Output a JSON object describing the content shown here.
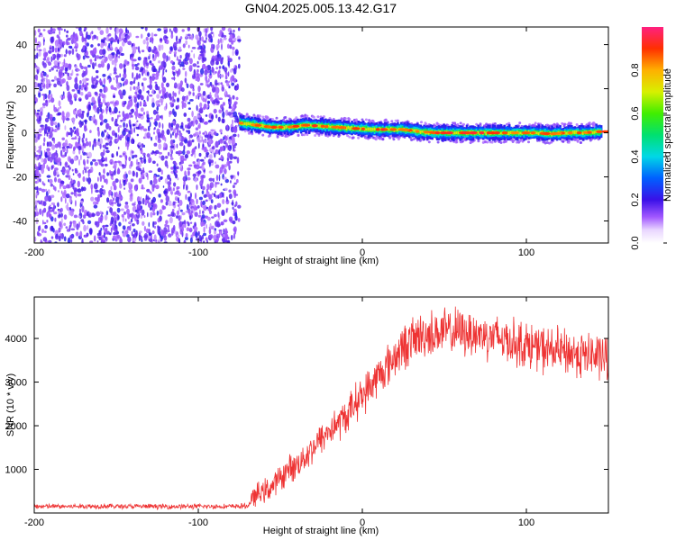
{
  "title": "GN04.2025.005.13.42.G17",
  "chart_data": [
    {
      "type": "heatmap",
      "xlabel": "Height of straight line (km)",
      "ylabel": "Frequency (Hz)",
      "xlim": [
        -200,
        150
      ],
      "ylim": [
        -50,
        48
      ],
      "xticks": [
        -200,
        -100,
        0,
        100
      ],
      "yticks": [
        -40,
        -20,
        0,
        20,
        40
      ],
      "noise_region": {
        "x": [
          -200,
          -75
        ],
        "description_values": "random scattered amplitudes 0.0–0.5"
      },
      "signal_ridge": {
        "x": [
          -75,
          -65,
          -55,
          -45,
          -35,
          -25,
          -15,
          -5,
          5,
          15,
          25,
          35,
          45,
          55,
          65,
          75,
          85,
          95,
          105,
          115,
          125,
          135,
          145
        ],
        "freq": [
          4.5,
          3.5,
          2.5,
          2.5,
          3.5,
          3.0,
          2.5,
          2.0,
          1.5,
          1.5,
          1.5,
          0.5,
          0.0,
          0.0,
          0.0,
          0.0,
          0.0,
          0.0,
          0.0,
          -0.5,
          0.0,
          0.0,
          0.5
        ],
        "amplitude": [
          0.9,
          0.9,
          0.9,
          0.9,
          0.95,
          0.9,
          0.9,
          0.9,
          0.95,
          0.9,
          0.9,
          0.9,
          0.95,
          0.95,
          0.95,
          0.95,
          0.9,
          0.9,
          0.9,
          0.9,
          0.9,
          0.9,
          0.9
        ]
      },
      "colorbar": {
        "label": "Normalized spectral amplitude",
        "range": [
          0.0,
          1.0
        ],
        "ticks": [
          "0.0",
          "0.2",
          "0.4",
          "0.6",
          "0.8"
        ],
        "ticks_values": [
          0.0,
          0.2,
          0.4,
          0.6,
          0.8
        ]
      }
    },
    {
      "type": "line",
      "xlabel": "Height of straight line (km)",
      "ylabel": "SNR (10 * v/v)",
      "xlim": [
        -200,
        150
      ],
      "ylim": [
        0,
        4950
      ],
      "xticks": [
        -200,
        -100,
        0,
        100
      ],
      "yticks": [
        1000,
        2000,
        3000,
        4000
      ],
      "color": "#ee3333",
      "series": [
        {
          "x": [
            -200,
            -180,
            -160,
            -140,
            -120,
            -100,
            -80,
            -70,
            -65,
            -60,
            -55,
            -50,
            -45,
            -40,
            -35,
            -30,
            -25,
            -20,
            -15,
            -10,
            -5,
            0,
            5,
            10,
            15,
            20,
            25,
            30,
            35,
            40,
            50,
            60,
            70,
            80,
            90,
            100,
            110,
            120,
            130,
            140,
            150
          ],
          "values": [
            150,
            150,
            160,
            150,
            150,
            150,
            150,
            160,
            400,
            500,
            600,
            800,
            1000,
            1100,
            1300,
            1500,
            1700,
            1900,
            2050,
            2200,
            2500,
            2700,
            2900,
            3150,
            3350,
            3600,
            3800,
            3950,
            4050,
            4100,
            4150,
            4150,
            4100,
            4050,
            3950,
            3850,
            3750,
            3700,
            3650,
            3600,
            3550
          ]
        }
      ]
    }
  ]
}
